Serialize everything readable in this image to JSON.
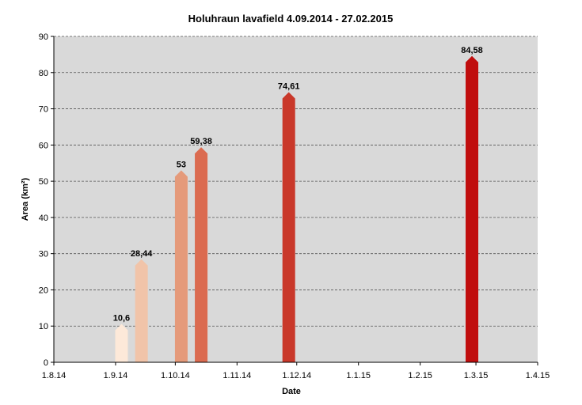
{
  "chart_data": {
    "type": "bar",
    "title": "Holuhraun lavafield 4.09.2014 - 27.02.2015",
    "xlabel": "Date",
    "ylabel": "Area (km²)",
    "ylim": [
      0,
      90
    ],
    "yticks": [
      0,
      10,
      20,
      30,
      40,
      50,
      60,
      70,
      80,
      90
    ],
    "xlim": [
      "2014-08-01",
      "2015-04-01"
    ],
    "xticks": [
      {
        "date": "2014-08-01",
        "label": "1.8.14"
      },
      {
        "date": "2014-09-01",
        "label": "1.9.14"
      },
      {
        "date": "2014-10-01",
        "label": "1.10.14"
      },
      {
        "date": "2014-11-01",
        "label": "1.11.14"
      },
      {
        "date": "2014-12-01",
        "label": "1.12.14"
      },
      {
        "date": "2015-01-01",
        "label": "1.1.15"
      },
      {
        "date": "2015-02-01",
        "label": "1.2.15"
      },
      {
        "date": "2015-03-01",
        "label": "1.3.15"
      },
      {
        "date": "2015-04-01",
        "label": "1.4.15"
      }
    ],
    "grid": true,
    "background_color": "#d9d9d9",
    "points": [
      {
        "date": "2014-09-04",
        "value": 10.6,
        "label": "10,6",
        "color": "#fde9d9"
      },
      {
        "date": "2014-09-14",
        "value": 28.44,
        "label": "28,44",
        "color": "#f1c4a9"
      },
      {
        "date": "2014-10-04",
        "value": 53,
        "label": "53",
        "color": "#e59a7a"
      },
      {
        "date": "2014-10-14",
        "value": 59.38,
        "label": "59,38",
        "color": "#db6b50"
      },
      {
        "date": "2014-11-27",
        "value": 74.61,
        "label": "74,61",
        "color": "#c9382a"
      },
      {
        "date": "2015-02-27",
        "value": 84.58,
        "label": "84,58",
        "color": "#c00d0d"
      }
    ]
  }
}
